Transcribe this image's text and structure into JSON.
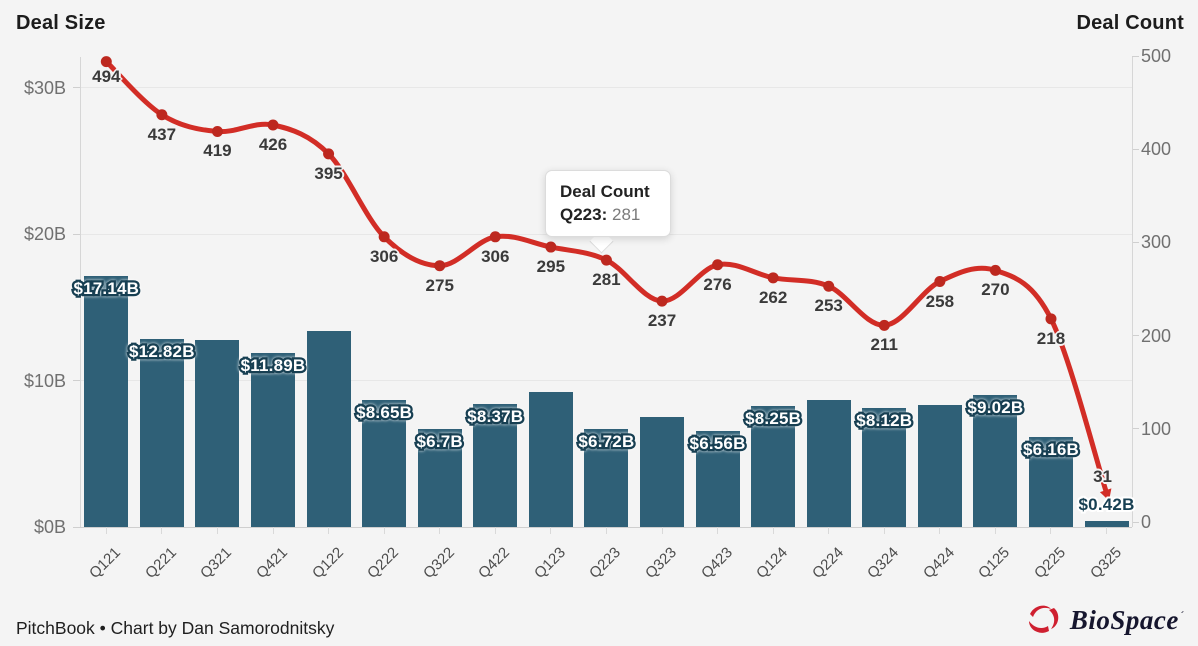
{
  "titles": {
    "left_axis": "Deal Size",
    "right_axis": "Deal Count"
  },
  "tooltip": {
    "title": "Deal Count",
    "quarter": "Q223:",
    "value": "281"
  },
  "footer": {
    "credit": "PitchBook • Chart by Dan Samorodnitsky",
    "logo_text": "BioSpace",
    "logo_mark": "´"
  },
  "colors": {
    "background": "#f4f4f4",
    "bar": "#2f6077",
    "bar_label_stroke": "#173f52",
    "line": "#d22d26",
    "marker": "#bd281f",
    "count_label": "#3a3a3a",
    "axis_text": "#707070",
    "x_label": "#4d4d4d",
    "gridline": "#e7e7e7",
    "logo_red": "#cf2030"
  },
  "chart_data": {
    "type": "combo-bar-line",
    "categories": [
      "Q121",
      "Q221",
      "Q321",
      "Q421",
      "Q122",
      "Q222",
      "Q322",
      "Q422",
      "Q123",
      "Q223",
      "Q323",
      "Q423",
      "Q124",
      "Q224",
      "Q324",
      "Q424",
      "Q125",
      "Q225",
      "Q325"
    ],
    "series": [
      {
        "name": "Deal Size",
        "type": "bar",
        "axis": "left",
        "unit": "USD billions",
        "values": [
          17.14,
          12.82,
          12.75,
          11.89,
          13.4,
          8.65,
          6.7,
          8.37,
          9.2,
          6.72,
          7.5,
          6.56,
          8.25,
          8.7,
          8.12,
          8.3,
          9.02,
          6.16,
          0.42
        ],
        "labels": [
          "$17.14B",
          "$12.82B",
          null,
          "$11.89B",
          null,
          "$8.65B",
          "$6.7B",
          "$8.37B",
          null,
          "$6.72B",
          null,
          "$6.56B",
          "$8.25B",
          null,
          "$8.12B",
          null,
          "$9.02B",
          "$6.16B",
          "$0.42B"
        ]
      },
      {
        "name": "Deal Count",
        "type": "line",
        "axis": "right",
        "values": [
          494,
          437,
          419,
          426,
          395,
          306,
          275,
          306,
          295,
          281,
          237,
          276,
          262,
          253,
          211,
          258,
          270,
          218,
          31
        ],
        "labels": [
          "494",
          "437",
          "419",
          "426",
          "395",
          "306",
          "275",
          "306",
          "295",
          "281",
          "237",
          "276",
          "262",
          "253",
          "211",
          "258",
          "270",
          "218",
          "31"
        ]
      }
    ],
    "left_axis": {
      "title": "Deal Size",
      "ticks": [
        "$0B",
        "$10B",
        "$20B",
        "$30B"
      ],
      "tick_values": [
        0,
        10,
        20,
        30
      ],
      "range": [
        0,
        30
      ]
    },
    "right_axis": {
      "title": "Deal Count",
      "ticks": [
        "0",
        "100",
        "200",
        "300",
        "400",
        "500"
      ],
      "tick_values": [
        0,
        100,
        200,
        300,
        400,
        500
      ],
      "range": [
        0,
        500
      ]
    },
    "grid": "horizontal",
    "legend": "none",
    "annotation": {
      "tooltip_series": "Deal Count",
      "tooltip_category": "Q223",
      "tooltip_value": 281
    }
  }
}
